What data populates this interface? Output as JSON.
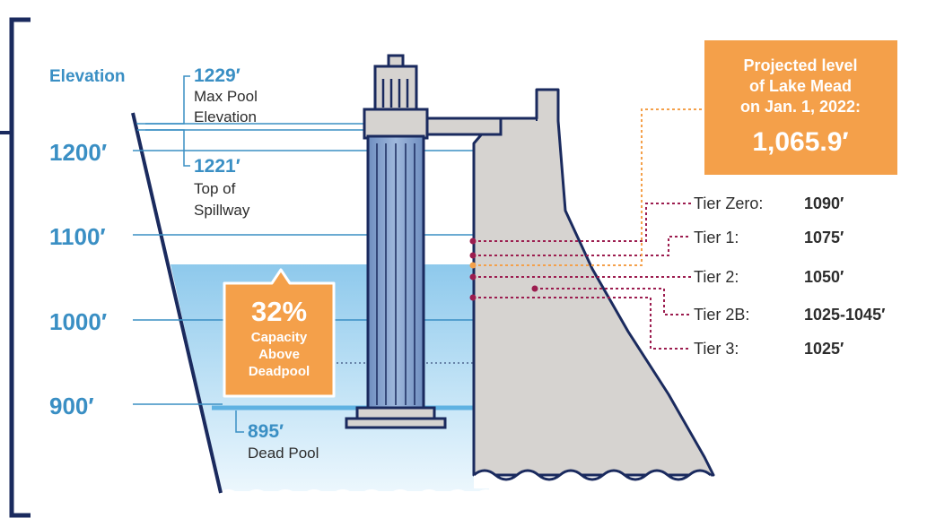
{
  "axis": {
    "title": "Elevation",
    "ticks": [
      "1200′",
      "1100′",
      "1000′",
      "900′"
    ]
  },
  "pool_marks": {
    "max_pool": {
      "value": "1229′",
      "line1": "Max Pool",
      "line2": "Elevation"
    },
    "spillway": {
      "value": "1221′",
      "line1": "Top of",
      "line2": "Spillway"
    },
    "dead_pool": {
      "value": "895′",
      "line1": "Dead Pool"
    }
  },
  "capacity": {
    "percent": "32%",
    "line1": "Capacity",
    "line2": "Above",
    "line3": "Deadpool"
  },
  "projection": {
    "line1": "Projected level",
    "line2": "of Lake Mead",
    "line3": "on Jan. 1, 2022:",
    "value": "1,065.9′"
  },
  "tiers": [
    {
      "name": "Tier Zero:",
      "value": "1090′"
    },
    {
      "name": "Tier 1:",
      "value": "1075′"
    },
    {
      "name": "Tier 2:",
      "value": "1050′"
    },
    {
      "name": "Tier 2B:",
      "value": "1025-1045′"
    },
    {
      "name": "Tier 3:",
      "value": "1025′"
    }
  ],
  "colors": {
    "blue_label": "#3a8fc4",
    "orange": "#f4a04a",
    "tier_marker": "#9c1d4f",
    "dam_gray": "#d6d3d0",
    "water_top": "#8ec9ec",
    "water_bottom": "#e6f4fc",
    "navy": "#1a2a5e"
  }
}
